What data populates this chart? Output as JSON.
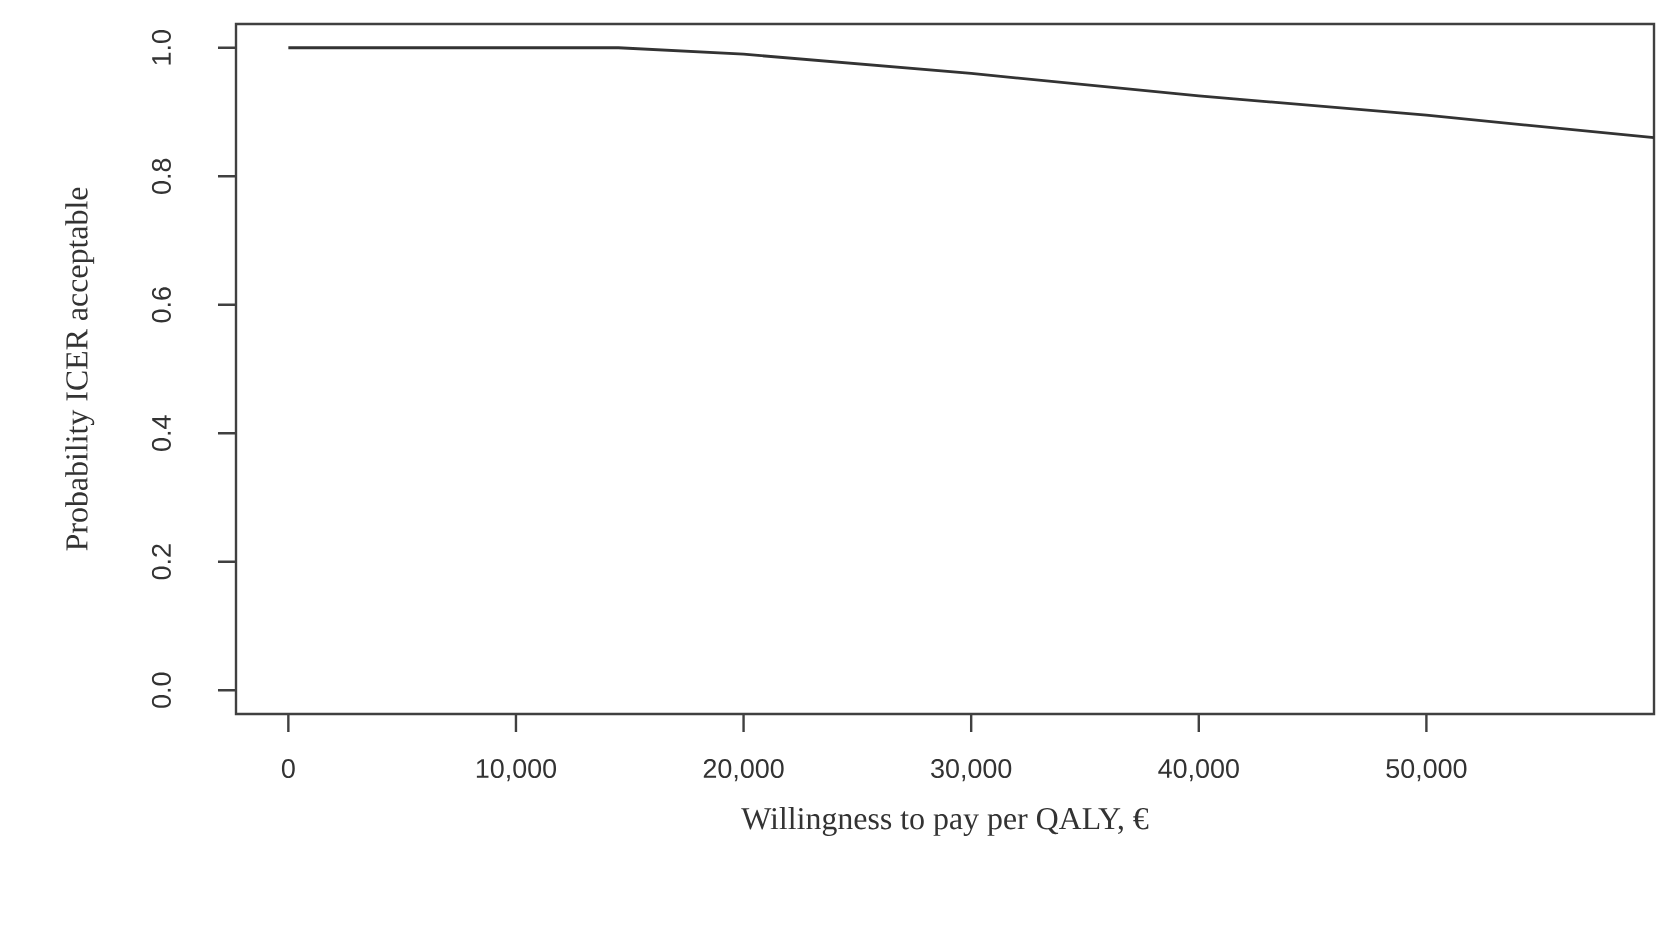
{
  "chart_data": {
    "type": "line",
    "xlabel": "Willingness to pay per QALY, €",
    "ylabel": "Probability ICER acceptable",
    "x": [
      0,
      14500,
      20000,
      30000,
      40000,
      50000,
      60000
    ],
    "series": [
      {
        "color": "#333333",
        "values": [
          1.0,
          1.0,
          0.99,
          0.96,
          0.925,
          0.895,
          0.86
        ]
      }
    ],
    "xlim": [
      -2300,
      60000
    ],
    "ylim": [
      -0.037,
      1.037
    ],
    "xticks": [
      0,
      {
        "value": 10000,
        "label": "10,000"
      },
      {
        "value": 20000,
        "label": "20,000"
      },
      {
        "value": 30000,
        "label": "30,000"
      },
      {
        "value": 40000,
        "label": "40,000"
      },
      {
        "value": 50000,
        "label": "50,000"
      }
    ],
    "yticks": [
      {
        "value": 0,
        "label": "0.0"
      },
      0.2,
      0.4,
      0.6,
      0.8,
      {
        "value": 1,
        "label": "1.0"
      }
    ]
  }
}
